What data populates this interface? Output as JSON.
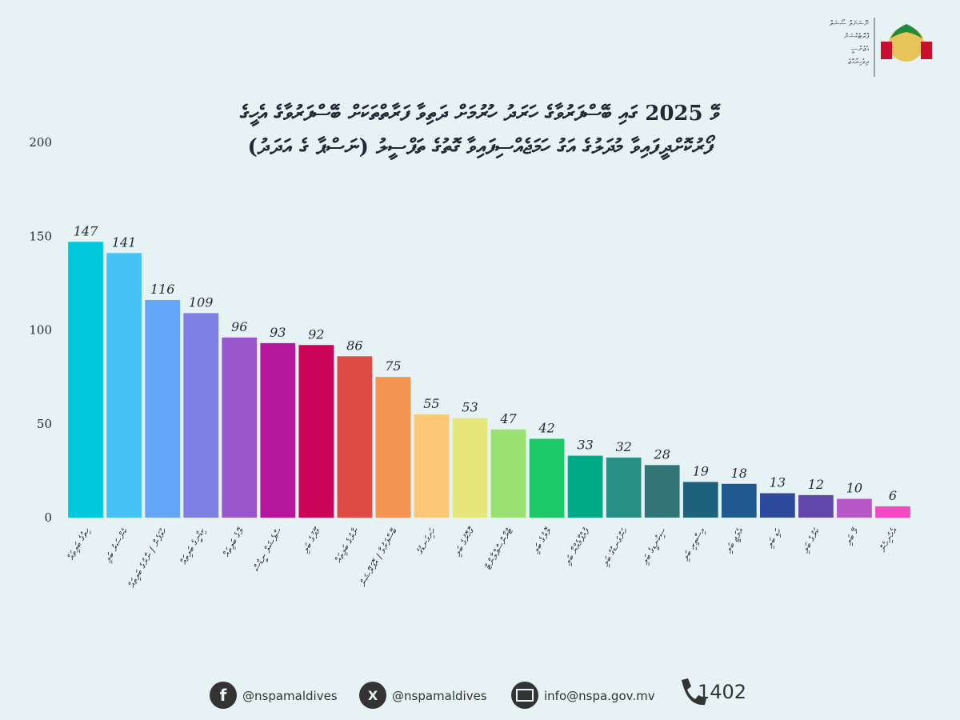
{
  "header": {
    "logo_text": [
      "ނޭޝަނަލް ސޯޝަލް",
      "ޕްރޮޓެކްޝަން",
      "އެޖެންސީ",
      "ދިވެހިރާއްޖެ"
    ]
  },
  "chart_data": {
    "type": "bar",
    "title": [
      "ވޭ 2025 ގައި ބޭސްފަރުވާގެ ހަރަދު ހުރުމަށް ދަތިވާ ފަރާތްތަކަށް ބޭސްފަރުވާގެ އެހީގެ",
      "ފޯރުކޮށްދީފައިވާ މުދަލުގެ އަގު ހަމަޖެއްސިފައިވާ ގޮތުގެ ތަފްސީލު (ނަސްޕާ ގެ އަދަދު)"
    ],
    "categories": [
      "ހިތުގެ ބަލިތައް",
      "ކެންސަރު ބަލި",
      "ހުވަފެން / ނާރުގެ ބަލިތައް",
      "ކިޑްނީގެ ބަލިތައް",
      "ލޭގެ ބަލިތައް",
      "ސްޕެޝަލް ނީޑްސް",
      "މޫދުގެ ބަލި",
      "ނާރުގެ ބަލިތައް",
      "ބޭސްފަރުވާ / އޮޕަރޭޝަން",
      "ހަށިގަނޑުގެ",
      "ގޮހޮރުގެ ބަލި",
      "ޓްރާންސްޕްލާންޓް",
      "ލޮލުގެ ބަލި",
      "ފުއްޕާމެއްޔާ ބަލި",
      "ހަންގަނޑުގެ ބަލި",
      "ސިކުނޑީގެ ބަލި",
      "އިސްތިރި ބަލި",
      "އެލަޖީ ބަލި",
      "ހަޑި ބަލި",
      "ކަރުގެ ބަލި",
      "މޭ ބަލި",
      "އެހެނިހެން"
    ],
    "values": [
      147,
      141,
      116,
      109,
      96,
      93,
      92,
      86,
      75,
      55,
      53,
      47,
      42,
      33,
      32,
      28,
      19,
      18,
      13,
      12,
      10,
      6
    ],
    "colors": [
      "#00c8dc",
      "#45c2f5",
      "#63a5f7",
      "#7f80e3",
      "#9a56cd",
      "#b5169c",
      "#cc0457",
      "#dd4c44",
      "#f39452",
      "#fcc877",
      "#e5e77a",
      "#9ae072",
      "#1ec96a",
      "#00aa86",
      "#278f84",
      "#337477",
      "#1e617a",
      "#1e5a90",
      "#2e4a9c",
      "#6247ab",
      "#b657c8",
      "#f449c4"
    ],
    "ylim": [
      0,
      200
    ],
    "yticks": [
      0,
      50,
      100,
      150,
      200
    ]
  },
  "footer": {
    "facebook": "@nspamaldives",
    "x": "@nspamaldives",
    "email": "info@nspa.gov.mv",
    "phone": "1402"
  }
}
